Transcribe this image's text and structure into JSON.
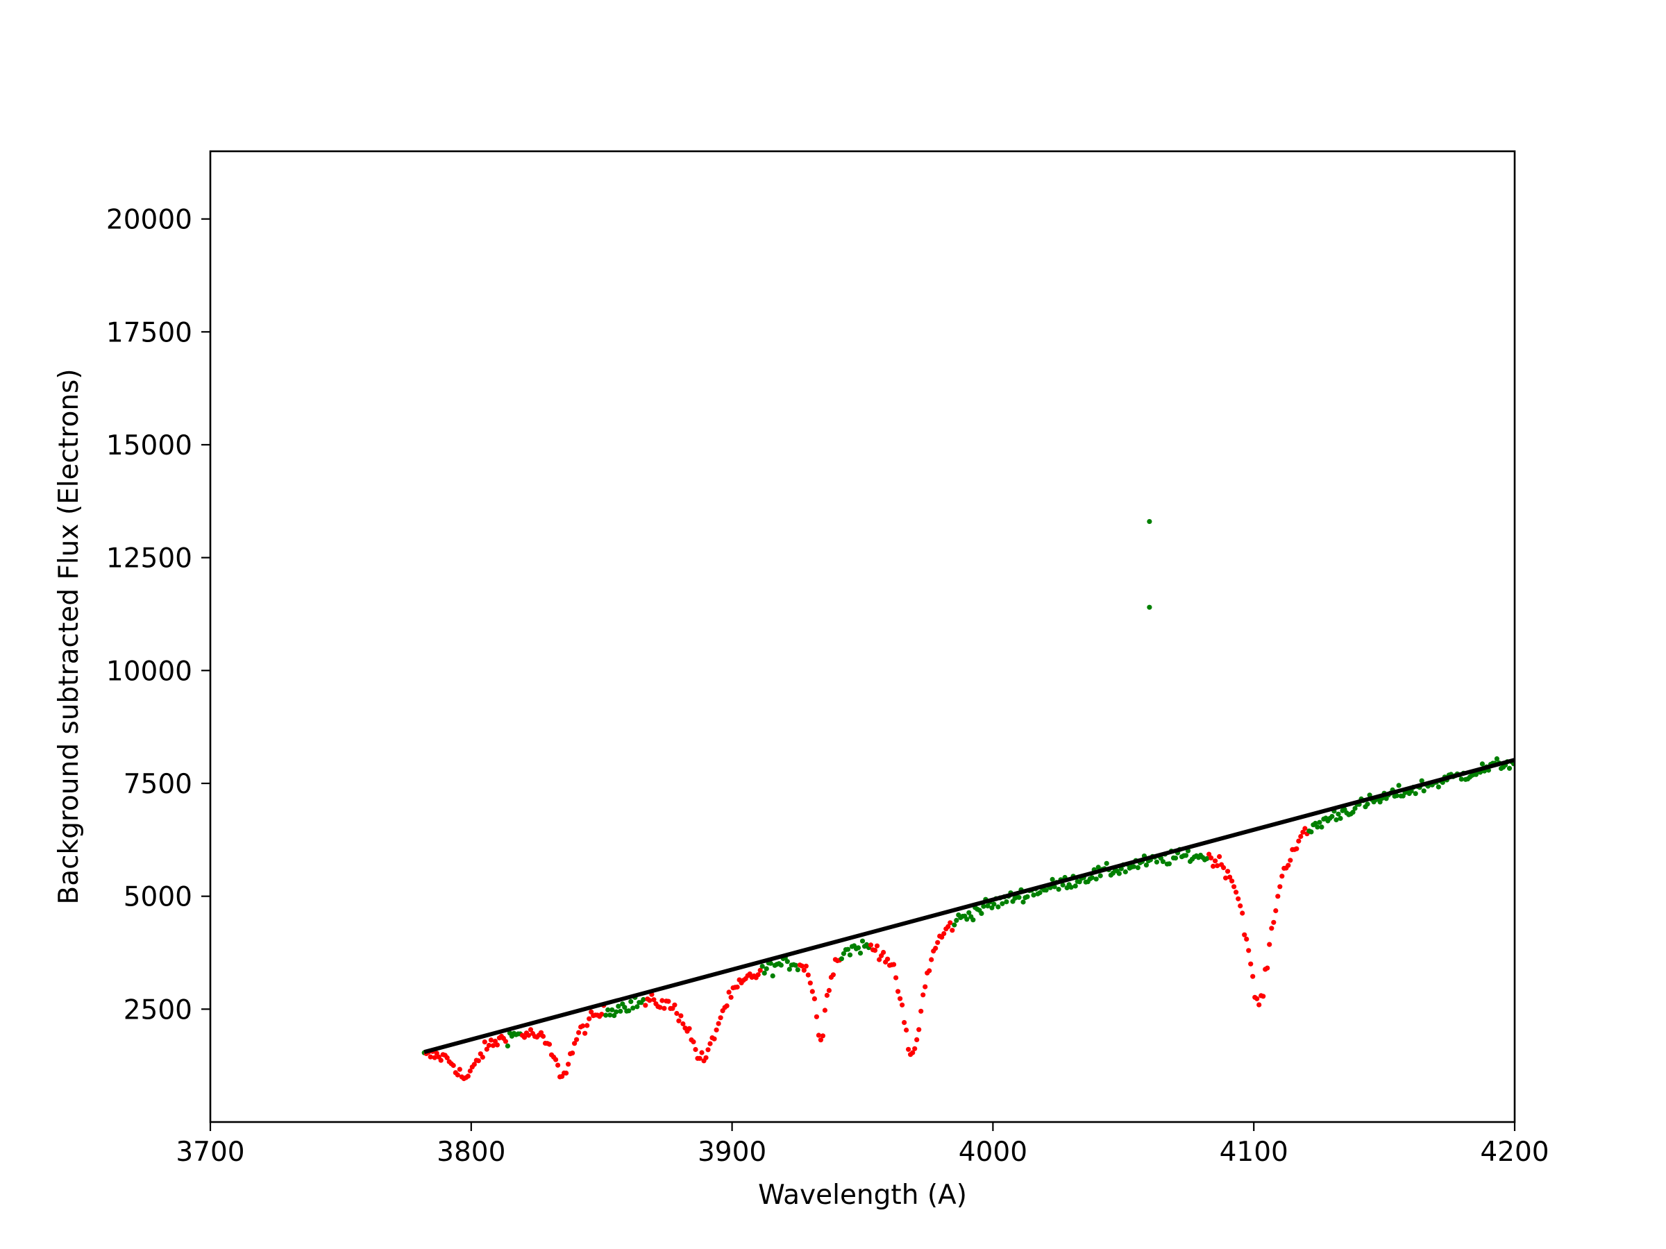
{
  "chart_data": {
    "type": "scatter",
    "title": "",
    "xlabel": "Wavelength (A)",
    "ylabel": "Background subtracted Flux (Electrons)",
    "xlim": [
      3700,
      4200
    ],
    "ylim": [
      0,
      21500
    ],
    "xticks": [
      "3700",
      "3800",
      "3900",
      "4000",
      "4100",
      "4200"
    ],
    "yticks": [
      "2500",
      "5000",
      "7500",
      "10000",
      "12500",
      "15000",
      "17500",
      "20000"
    ],
    "grid": false,
    "legend": "none",
    "colors": {
      "continuum_points": "#008000",
      "line_points": "#ff0000",
      "fit": "#000000",
      "axes": "#000000"
    },
    "fit_line": {
      "x": [
        3782,
        4200
      ],
      "y": [
        1550,
        8020
      ]
    },
    "absorption_lines": [
      {
        "center": 3798,
        "min": 1000,
        "halfwidth": 5
      },
      {
        "center": 3835,
        "min": 1120,
        "halfwidth": 5
      },
      {
        "center": 3889,
        "min": 1420,
        "halfwidth": 7
      },
      {
        "center": 3934,
        "min": 1900,
        "halfwidth": 2.5
      },
      {
        "center": 3969,
        "min": 1500,
        "halfwidth": 5
      },
      {
        "center": 4102,
        "min": 2620,
        "halfwidth": 6
      }
    ],
    "outliers": [
      {
        "x": 4060,
        "y": 13300
      },
      {
        "x": 4060,
        "y": 11400
      }
    ],
    "series": [
      {
        "x_range": [
          3782,
          4200
        ],
        "x_step": 0.8
      }
    ]
  }
}
